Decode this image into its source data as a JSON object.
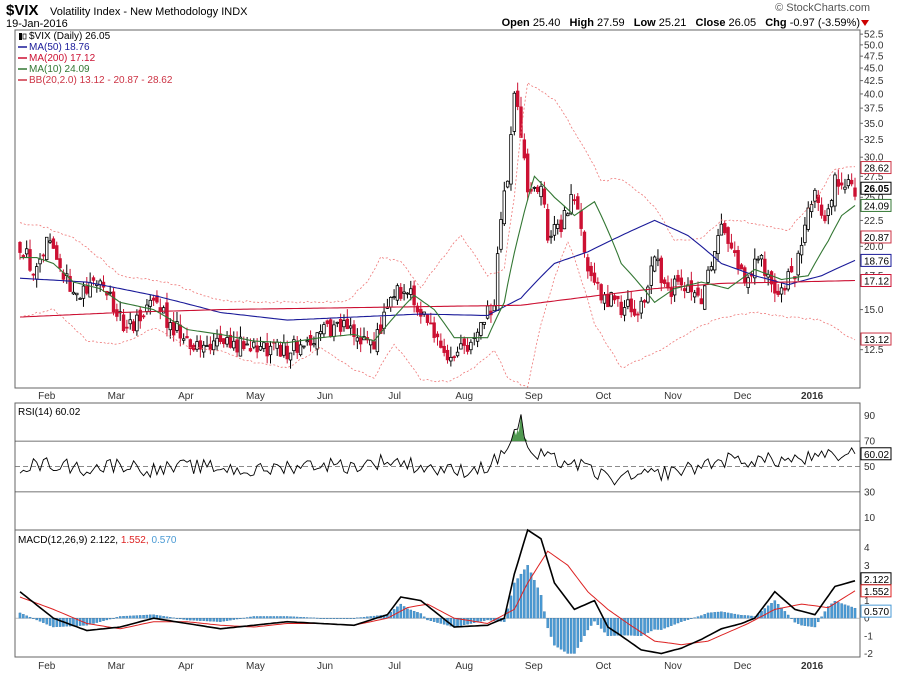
{
  "header": {
    "symbol": "$VIX",
    "description": "Volatility Index - New Methodology  INDX",
    "date": "19-Jan-2016",
    "brand": "© StockCharts.com",
    "open_label": "Open",
    "open": "25.40",
    "high_label": "High",
    "high": "27.59",
    "low_label": "Low",
    "low": "25.21",
    "close_label": "Close",
    "close": "26.05",
    "chg_label": "Chg",
    "chg": "-0.97 (-3.59%)"
  },
  "legend": [
    {
      "text": "$VIX (Daily) 26.05",
      "color": "#000000",
      "icon": "candlestick-icon"
    },
    {
      "text": "MA(50) 18.76",
      "color": "#1a1a99",
      "icon": "line-icon"
    },
    {
      "text": "MA(200) 17.12",
      "color": "#cc1133",
      "icon": "line-icon"
    },
    {
      "text": "MA(10) 24.09",
      "color": "#337733",
      "icon": "line-icon"
    },
    {
      "text": "BB(20,2.0) 13.12 - 20.87 - 28.62",
      "color": "#cc3344",
      "icon": "line-icon"
    }
  ],
  "colors": {
    "up": "#000000",
    "down": "#cc1133",
    "ma50": "#1a1a99",
    "ma200": "#cc1133",
    "ma10": "#337733",
    "bb": "#ee7777",
    "macd": "#000000",
    "signal": "#dd2222",
    "hist": "#4a9ad4",
    "rsi": "#000000",
    "rsi_fill": "#338833"
  },
  "x_labels": [
    "Feb",
    "Mar",
    "Apr",
    "May",
    "Jun",
    "Jul",
    "Aug",
    "Sep",
    "Oct",
    "Nov",
    "Dec",
    "2016",
    "Feb",
    "Mar",
    "Apr",
    "May",
    "Jun",
    "Jul",
    "Aug",
    "Sep",
    "Oct",
    "Nov",
    "Dec",
    "2016"
  ],
  "price_ticks": [
    "52.5",
    "50.0",
    "47.5",
    "45.0",
    "42.5",
    "40.0",
    "37.5",
    "35.0",
    "32.5",
    "30.0",
    "27.5",
    "25.0",
    "22.5",
    "20.0",
    "17.5",
    "15.0",
    "12.5"
  ],
  "price_tags": [
    {
      "text": "28.62",
      "value": 28.62,
      "border": "#cc3344",
      "bold": false
    },
    {
      "text": "26.05",
      "value": 26.05,
      "border": "#000000",
      "bold": true
    },
    {
      "text": "24.09",
      "value": 24.09,
      "border": "#337733",
      "bold": false
    },
    {
      "text": "20.87",
      "value": 20.87,
      "border": "#cc3344",
      "bold": false
    },
    {
      "text": "18.76",
      "value": 18.76,
      "border": "#1a1a99",
      "bold": false
    },
    {
      "text": "17.12",
      "value": 17.12,
      "border": "#cc1133",
      "bold": false
    },
    {
      "text": "13.12",
      "value": 13.12,
      "border": "#cc3344",
      "bold": false
    }
  ],
  "rsi": {
    "label": "RSI(14) 60.02",
    "ticks": [
      "90",
      "70",
      "50",
      "30",
      "10"
    ],
    "tag": "60.02"
  },
  "macd": {
    "label_name": "MACD(12,26,9)",
    "label_macd": "2.122",
    "label_signal": "1.552",
    "label_hist": "0.570",
    "ticks": [
      "4",
      "3",
      "2",
      "1",
      "0",
      "-1",
      "-2"
    ],
    "tags": [
      "2.122",
      "1.552",
      "0.570"
    ]
  },
  "chart_data": {
    "type": "line",
    "title": "$VIX Volatility Index - New Methodology INDX (Daily)",
    "x_range": [
      "2015-01-20",
      "2016-01-19"
    ],
    "price_ylim": [
      10.5,
      53.5
    ],
    "price_scale": "log",
    "grid": false,
    "legend_position": "top-left",
    "price_keypoints": {
      "x": [
        0,
        4,
        8,
        16,
        24,
        32,
        40,
        50,
        60,
        68,
        80,
        90,
        98,
        106,
        112,
        118,
        124,
        128,
        136,
        142,
        146,
        148,
        152,
        156,
        158,
        162,
        166,
        170,
        176,
        180,
        186,
        190,
        194,
        198,
        204,
        210,
        216,
        222,
        226,
        232,
        236,
        238,
        241,
        244,
        247,
        250
      ],
      "close": [
        20.2,
        18.0,
        20.5,
        16.0,
        16.7,
        13.8,
        15.3,
        13.0,
        12.8,
        12.7,
        12.4,
        13.5,
        13.8,
        12.5,
        16.5,
        15.8,
        13.5,
        12.2,
        13.0,
        15.5,
        28.0,
        40.7,
        26.0,
        26.8,
        21.0,
        22.0,
        25.2,
        17.2,
        15.8,
        15.2,
        15.1,
        18.9,
        16.3,
        17.0,
        15.2,
        22.5,
        17.5,
        18.5,
        16.5,
        17.5,
        24.0,
        25.0,
        22.5,
        27.0,
        27.0,
        26.05
      ]
    },
    "bollinger_upper_keypoints": {
      "x": [
        0,
        6,
        16,
        30,
        44,
        60,
        80,
        98,
        104,
        108,
        114,
        120,
        126,
        132,
        140,
        145,
        148,
        152,
        160,
        168,
        174,
        180,
        190,
        196,
        204,
        210,
        216,
        222,
        230,
        238,
        244,
        250
      ],
      "value": [
        22.2,
        22.0,
        20.8,
        17.5,
        17.0,
        15.6,
        15.5,
        15.6,
        17.0,
        19.0,
        18.7,
        16.5,
        18.8,
        21.0,
        17.5,
        18.0,
        25.0,
        42.0,
        39.0,
        32.0,
        27.0,
        27.2,
        24.0,
        20.5,
        20.8,
        22.5,
        22.5,
        22.0,
        21.5,
        24.5,
        28.5,
        28.62
      ]
    },
    "bollinger_lower_keypoints": {
      "x": [
        0,
        10,
        20,
        30,
        40,
        50,
        60,
        70,
        80,
        90,
        100,
        106,
        112,
        120,
        128,
        136,
        142,
        146,
        152,
        156,
        164,
        172,
        180,
        190,
        200,
        210,
        220,
        230,
        240,
        246,
        250
      ],
      "value": [
        14.5,
        15.0,
        13.0,
        12.8,
        13.8,
        12.7,
        12.4,
        11.8,
        11.5,
        12.6,
        11.4,
        11.0,
        12.8,
        10.9,
        10.8,
        11.5,
        12.5,
        11.0,
        10.5,
        14.0,
        20.5,
        14.0,
        11.5,
        12.3,
        13.5,
        14.5,
        14.8,
        14.5,
        14.3,
        13.5,
        13.12
      ]
    },
    "series": [
      {
        "name": "MA(50)",
        "keypoints": {
          "x": [
            0,
            20,
            40,
            60,
            80,
            100,
            120,
            140,
            150,
            160,
            170,
            180,
            190,
            200,
            210,
            220,
            230,
            240,
            250
          ],
          "value": [
            17.3,
            17.0,
            16.0,
            14.8,
            14.3,
            14.5,
            14.7,
            14.6,
            15.8,
            18.5,
            19.5,
            21.0,
            22.5,
            21.0,
            18.5,
            17.5,
            16.8,
            17.5,
            18.76
          ]
        }
      },
      {
        "name": "MA(200)",
        "keypoints": {
          "x": [
            0,
            30,
            60,
            90,
            120,
            150,
            170,
            190,
            210,
            230,
            250
          ],
          "value": [
            14.5,
            14.8,
            15.0,
            15.1,
            15.2,
            15.3,
            15.9,
            16.5,
            16.9,
            17.0,
            17.12
          ]
        }
      },
      {
        "name": "MA(10)",
        "keypoints": {
          "x": [
            0,
            5,
            10,
            16,
            24,
            30,
            40,
            50,
            60,
            70,
            80,
            90,
            100,
            106,
            112,
            118,
            124,
            130,
            140,
            145,
            150,
            154,
            160,
            166,
            172,
            180,
            190,
            196,
            204,
            212,
            220,
            228,
            236,
            242,
            246,
            250
          ],
          "value": [
            19.0,
            19.0,
            18.5,
            17.0,
            16.5,
            15.5,
            15.0,
            13.7,
            13.4,
            13.0,
            12.9,
            13.2,
            13.4,
            13.0,
            14.5,
            16.0,
            15.0,
            13.2,
            13.2,
            15.5,
            22.0,
            27.5,
            25.0,
            23.0,
            24.5,
            18.5,
            15.5,
            16.5,
            17.0,
            16.5,
            18.0,
            17.2,
            17.5,
            20.5,
            23.0,
            24.09
          ]
        }
      }
    ],
    "rsi": {
      "ylim": [
        0,
        100
      ],
      "levels": [
        70,
        30
      ],
      "mid": 50,
      "last": 60.02,
      "keypoints": {
        "x": [
          0,
          10,
          20,
          30,
          40,
          50,
          60,
          70,
          80,
          90,
          100,
          110,
          120,
          130,
          140,
          144,
          148,
          150,
          152,
          156,
          160,
          165,
          170,
          175,
          180,
          190,
          200,
          210,
          220,
          230,
          240,
          250
        ],
        "value": [
          50,
          52,
          48,
          52,
          47,
          50,
          49,
          46,
          50,
          52,
          50,
          55,
          50,
          46,
          50,
          58,
          76,
          89,
          60,
          58,
          55,
          53,
          48,
          42,
          40,
          44,
          48,
          55,
          55,
          55,
          57,
          60.02
        ]
      }
    },
    "macd": {
      "ylim": [
        -2.2,
        5.0
      ],
      "last_macd": 2.122,
      "last_signal": 1.552,
      "last_histogram": 0.57,
      "macd_keypoints": {
        "x": [
          0,
          10,
          20,
          30,
          40,
          50,
          60,
          70,
          80,
          90,
          100,
          110,
          114,
          120,
          130,
          140,
          145,
          148,
          152,
          156,
          160,
          166,
          172,
          176,
          180,
          186,
          192,
          198,
          204,
          210,
          216,
          220,
          226,
          232,
          238,
          244,
          250
        ],
        "value": [
          1.5,
          0.0,
          -0.7,
          -0.5,
          0.0,
          -0.3,
          -0.6,
          -0.4,
          -0.2,
          -0.3,
          -0.4,
          0.2,
          1.2,
          1.0,
          -0.5,
          -0.4,
          0.0,
          2.5,
          5.0,
          4.5,
          2.0,
          0.5,
          1.0,
          -0.5,
          -1.0,
          -1.8,
          -2.0,
          -1.7,
          -1.2,
          -0.6,
          -0.3,
          0.0,
          1.5,
          0.5,
          0.2,
          1.8,
          2.122
        ]
      },
      "signal_keypoints": {
        "x": [
          0,
          10,
          20,
          30,
          40,
          50,
          60,
          70,
          80,
          90,
          100,
          110,
          116,
          122,
          130,
          140,
          148,
          152,
          158,
          164,
          170,
          176,
          182,
          190,
          198,
          206,
          212,
          218,
          226,
          234,
          242,
          250
        ],
        "value": [
          1.2,
          0.5,
          -0.3,
          -0.6,
          -0.2,
          -0.2,
          -0.4,
          -0.5,
          -0.3,
          -0.3,
          -0.4,
          0.0,
          0.6,
          0.8,
          0.0,
          -0.3,
          0.5,
          2.0,
          3.8,
          3.0,
          1.5,
          0.5,
          -0.3,
          -1.3,
          -1.5,
          -1.3,
          -0.8,
          -0.3,
          0.5,
          0.8,
          0.6,
          1.552
        ]
      }
    }
  }
}
